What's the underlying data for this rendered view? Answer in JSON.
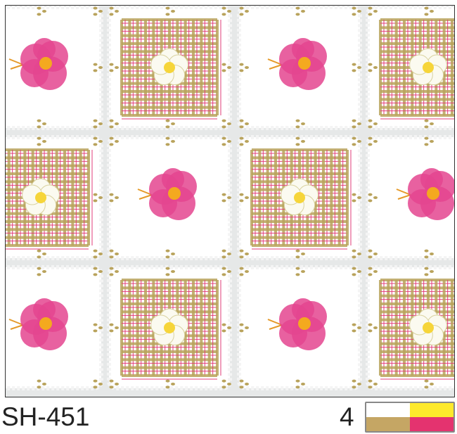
{
  "design_code": "SH-451",
  "color_count": "4",
  "colors": [
    "#ffffff",
    "#fde92c",
    "#c5a664",
    "#e4336f"
  ],
  "pattern": {
    "motifs": [
      "pink-rose",
      "plaid-with-white-flower"
    ],
    "plaid_colors": [
      "#b9a35c",
      "#e23d78"
    ],
    "rose_color": "#e4458f",
    "background": "#e6e8e8"
  }
}
